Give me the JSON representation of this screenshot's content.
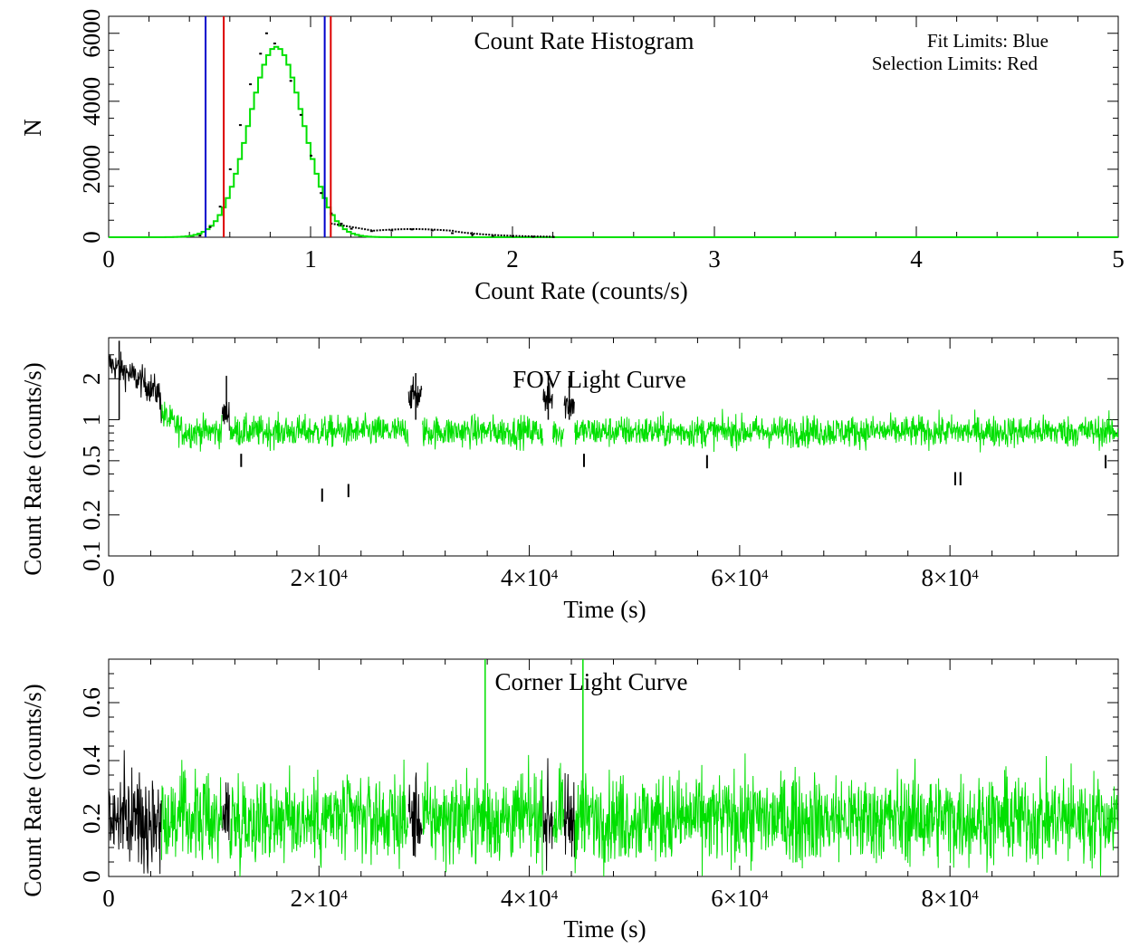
{
  "chart_data": [
    {
      "id": "hist",
      "type": "histogram",
      "title": "Count Rate Histogram",
      "xlabel": "Count Rate (counts/s)",
      "ylabel": "N",
      "xlim": [
        0,
        5
      ],
      "ylim": [
        0,
        6500
      ],
      "xticks": [
        0,
        1,
        2,
        3,
        4,
        5
      ],
      "yticks": [
        0,
        2000,
        4000,
        6000
      ],
      "xtick_labels": [
        "0",
        "1",
        "2",
        "3",
        "4",
        "5"
      ],
      "ytick_labels": [
        "0",
        "2000",
        "4000",
        "6000"
      ],
      "annotations": [
        "Fit Limits: Blue",
        "Selection Limits: Red"
      ],
      "fit_limits": [
        0.48,
        1.07
      ],
      "selection_limits": [
        0.57,
        1.1
      ],
      "model_curve": {
        "mean": 0.82,
        "sigma": 0.135,
        "peak": 5600,
        "color": "#00e000"
      },
      "data_series": [
        {
          "x": 0.45,
          "y": 50
        },
        {
          "x": 0.5,
          "y": 300
        },
        {
          "x": 0.55,
          "y": 900
        },
        {
          "x": 0.6,
          "y": 2000
        },
        {
          "x": 0.65,
          "y": 3300
        },
        {
          "x": 0.7,
          "y": 4500
        },
        {
          "x": 0.75,
          "y": 5400
        },
        {
          "x": 0.78,
          "y": 6000
        },
        {
          "x": 0.82,
          "y": 5700
        },
        {
          "x": 0.9,
          "y": 4600
        },
        {
          "x": 0.95,
          "y": 3600
        },
        {
          "x": 1.0,
          "y": 2400
        },
        {
          "x": 1.05,
          "y": 1300
        },
        {
          "x": 1.1,
          "y": 700
        },
        {
          "x": 1.15,
          "y": 400
        },
        {
          "x": 1.2,
          "y": 250
        },
        {
          "x": 1.3,
          "y": 180
        },
        {
          "x": 1.4,
          "y": 200
        },
        {
          "x": 1.5,
          "y": 230
        },
        {
          "x": 1.6,
          "y": 200
        },
        {
          "x": 1.7,
          "y": 120
        },
        {
          "x": 1.8,
          "y": 70
        },
        {
          "x": 1.9,
          "y": 40
        },
        {
          "x": 2.0,
          "y": 25
        },
        {
          "x": 2.1,
          "y": 15
        },
        {
          "x": 2.2,
          "y": 8
        }
      ]
    },
    {
      "id": "fov",
      "type": "line",
      "title": "FOV Light Curve",
      "xlabel": "Time (s)",
      "ylabel": "Count Rate (counts/s)",
      "yscale": "log",
      "xlim": [
        0,
        96000
      ],
      "ylim": [
        0.1,
        4
      ],
      "xticks": [
        0,
        20000,
        40000,
        60000,
        80000
      ],
      "xtick_labels": [
        "0",
        "2×10",
        "4×10",
        "6×10",
        "8×10"
      ],
      "xtick_exponent": "4",
      "yticks": [
        0.1,
        0.2,
        0.5,
        1,
        2
      ],
      "ytick_labels": [
        "0.1",
        "0.2",
        "0.5",
        "1",
        "2"
      ],
      "series": [
        {
          "color": "#000000",
          "segments": [
            [
              0,
              5000
            ],
            [
              10800,
              11500
            ],
            [
              28500,
              29800
            ],
            [
              41300,
              42200
            ],
            [
              43300,
              44300
            ]
          ],
          "level_note": "elevated flare intervals",
          "start_value": 2.6,
          "flare_value": 1.6
        },
        {
          "color": "#00e000",
          "segments": [
            [
              5000,
              96000
            ]
          ],
          "typical_value": 0.82
        }
      ],
      "dips": [
        {
          "x": 20300,
          "y": 0.25
        },
        {
          "x": 22800,
          "y": 0.27
        },
        {
          "x": 12600,
          "y": 0.45
        },
        {
          "x": 45200,
          "y": 0.45
        },
        {
          "x": 56900,
          "y": 0.44
        },
        {
          "x": 80500,
          "y": 0.33
        },
        {
          "x": 81000,
          "y": 0.33
        },
        {
          "x": 94800,
          "y": 0.44
        }
      ],
      "spikes": [
        {
          "x": 11200,
          "y": 2.1
        },
        {
          "x": 29200,
          "y": 2.2
        },
        {
          "x": 41800,
          "y": 2.1
        },
        {
          "x": 43800,
          "y": 2.1
        },
        {
          "x": 1000,
          "y": 3.8
        }
      ]
    },
    {
      "id": "corner",
      "type": "line",
      "title": "Corner Light Curve",
      "xlabel": "Time (s)",
      "ylabel": "Count Rate (counts/s)",
      "xlim": [
        0,
        96000
      ],
      "ylim": [
        0,
        0.75
      ],
      "xticks": [
        0,
        20000,
        40000,
        60000,
        80000
      ],
      "xtick_labels": [
        "0",
        "2×10",
        "4×10",
        "6×10",
        "8×10"
      ],
      "xtick_exponent": "4",
      "yticks": [
        0,
        0.2,
        0.4,
        0.6
      ],
      "ytick_labels": [
        "0",
        "0.2",
        "0.4",
        "0.6"
      ],
      "series": [
        {
          "color": "#000000",
          "segments": [
            [
              0,
              5000
            ],
            [
              10800,
              11500
            ],
            [
              28500,
              29800
            ],
            [
              41300,
              42200
            ],
            [
              43300,
              44300
            ]
          ]
        },
        {
          "color": "#00e000",
          "segments": [
            [
              5000,
              96000
            ]
          ],
          "typical_value": 0.2
        }
      ],
      "spikes": [
        {
          "x": 35800,
          "y": 0.75
        },
        {
          "x": 45100,
          "y": 0.75
        }
      ]
    }
  ]
}
